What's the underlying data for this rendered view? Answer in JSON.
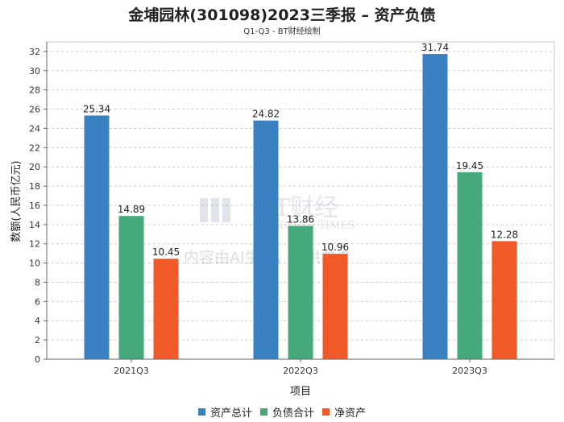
{
  "chart_data": {
    "type": "bar",
    "title": "金埔园林(301098)2023三季报 – 资产负债",
    "subtitle": "Q1-Q3 - BT财经绘制",
    "xlabel": "项目",
    "ylabel": "数额(人民币亿元)",
    "categories": [
      "2021Q3",
      "2022Q3",
      "2023Q3"
    ],
    "series": [
      {
        "name": "资产总计",
        "values": [
          25.34,
          24.82,
          31.74
        ],
        "color": "#3a81c1"
      },
      {
        "name": "负债合计",
        "values": [
          14.89,
          13.86,
          19.45
        ],
        "color": "#45a97b"
      },
      {
        "name": "净资产",
        "values": [
          10.45,
          10.96,
          12.28
        ],
        "color": "#f05a28"
      }
    ],
    "ylim": [
      0,
      33
    ],
    "yticks": [
      0,
      2,
      4,
      6,
      8,
      10,
      12,
      14,
      16,
      18,
      20,
      22,
      24,
      26,
      28,
      30,
      32
    ],
    "grid": true,
    "legend_position": "bottom"
  },
  "watermark": {
    "brand": "BT财经",
    "brand_en": "BUSINESS TIMES",
    "notice": "内容由AI生成，仅供参考"
  }
}
